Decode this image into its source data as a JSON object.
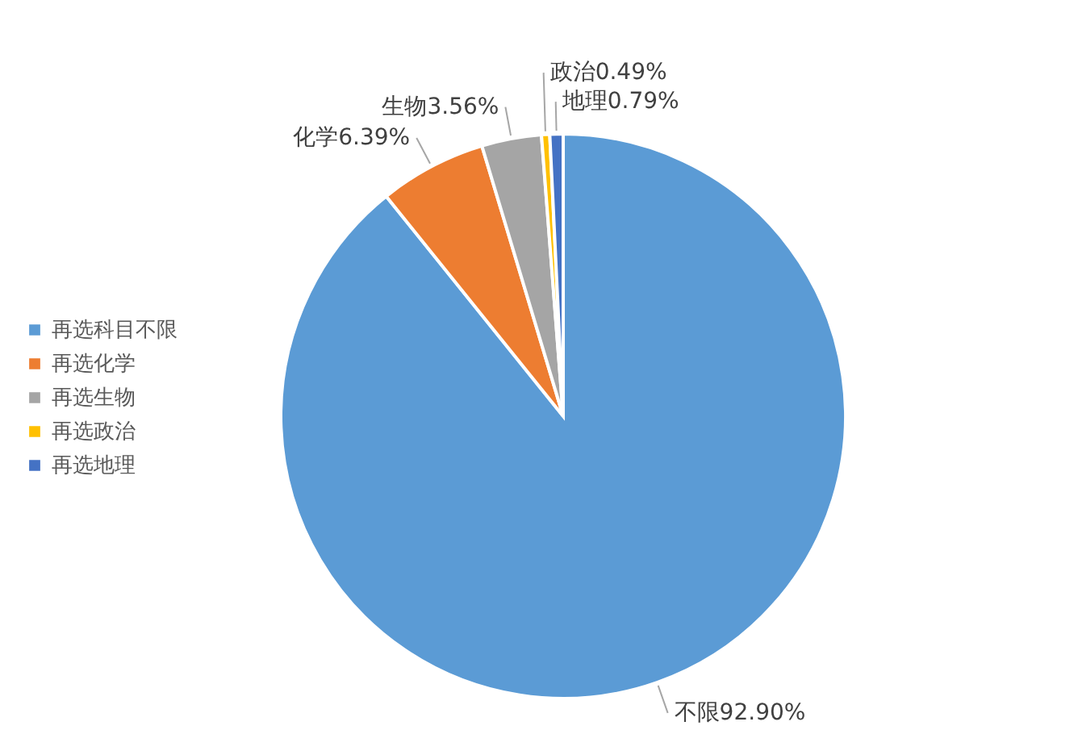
{
  "chart_data": {
    "type": "pie",
    "categories": [
      "再选科目不限",
      "再选化学",
      "再选生物",
      "再选政治",
      "再选地理"
    ],
    "values": [
      92.9,
      6.39,
      3.56,
      0.49,
      0.79
    ],
    "colors": [
      "#5b9bd5",
      "#ed7d31",
      "#a5a5a5",
      "#ffc000",
      "#4472c4"
    ],
    "value_labels": [
      "不限92.90%",
      "化学6.39%",
      "生物3.56%",
      "政治0.49%",
      "地理0.79%"
    ],
    "legend": "left"
  }
}
